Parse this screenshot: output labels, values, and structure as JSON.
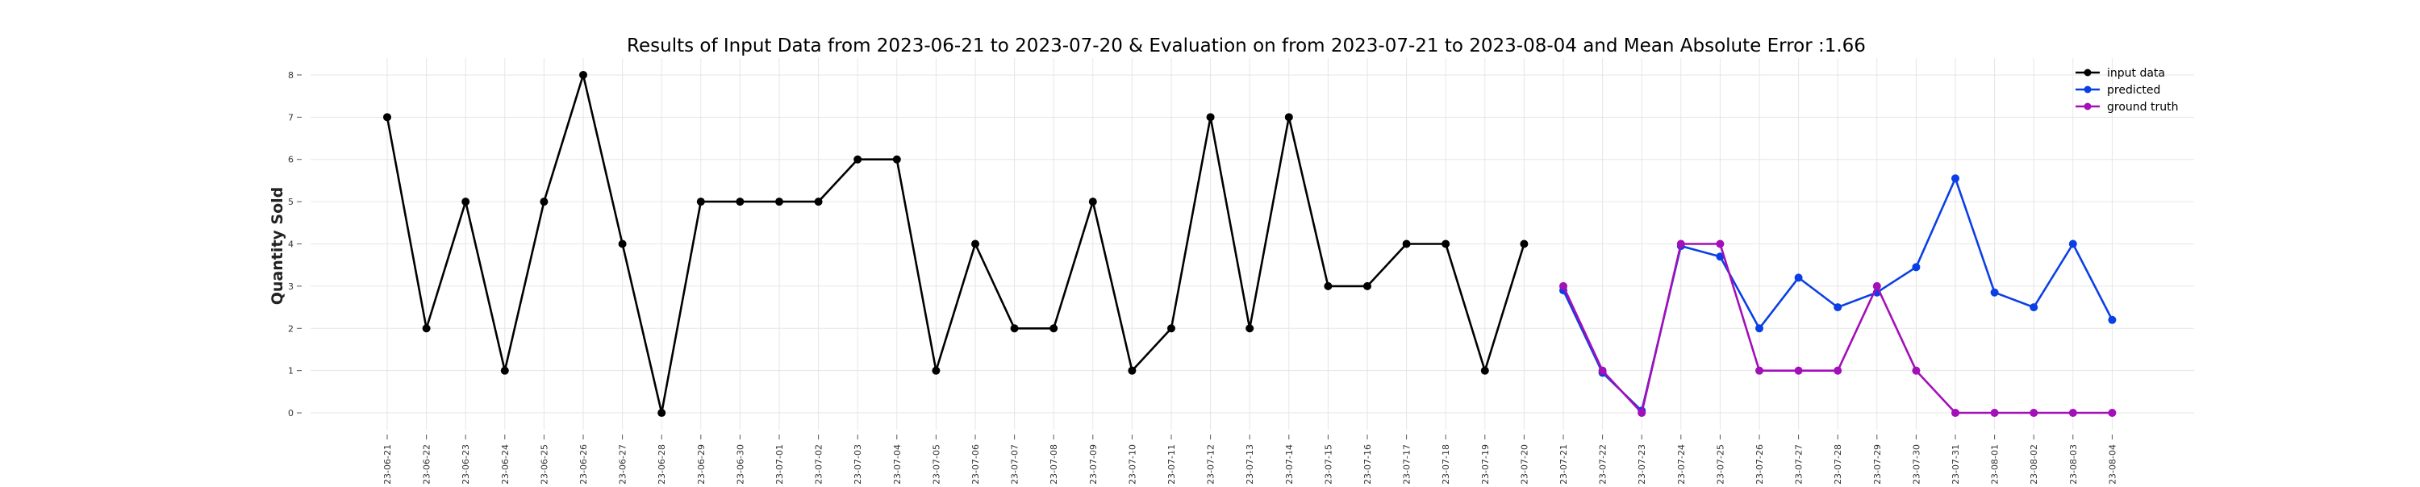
{
  "chart_data": {
    "type": "line",
    "title": "Results of Input Data from 2023-06-21 to 2023-07-20 & Evaluation on from 2023-07-21 to 2023-08-04 and Mean Absolute Error  :1.66",
    "xlabel": "",
    "ylabel": "Quantity Sold",
    "ylim": [
      -0.4,
      8.4
    ],
    "yticks": [
      0,
      1,
      2,
      3,
      4,
      5,
      6,
      7,
      8
    ],
    "grid": true,
    "legend_position": "top-right",
    "x_tick_labels": [
      "-23-06-21",
      "-23-06-22",
      "-23-06-23",
      "-23-06-24",
      "-23-06-25",
      "-23-06-26",
      "-23-06-27",
      "-23-06-28",
      "-23-06-29",
      "-23-06-30",
      "-23-07-01",
      "-23-07-02",
      "-23-07-03",
      "-23-07-04",
      "-23-07-05",
      "-23-07-06",
      "-23-07-07",
      "-23-07-08",
      "-23-07-09",
      "-23-07-10",
      "-23-07-11",
      "-23-07-12",
      "-23-07-13",
      "-23-07-14",
      "-23-07-15",
      "-23-07-16",
      "-23-07-17",
      "-23-07-18",
      "-23-07-19",
      "-23-07-20",
      "-23-07-21",
      "-23-07-22",
      "-23-07-23",
      "-23-07-24",
      "-23-07-25",
      "-23-07-26",
      "-23-07-27",
      "-23-07-28",
      "-23-07-29",
      "-23-07-30",
      "-23-07-31",
      "-23-08-01",
      "-23-08-02",
      "-23-08-03",
      "-23-08-04"
    ],
    "series": [
      {
        "name": "input data",
        "color": "#000000",
        "x": [
          "2023-06-21",
          "2023-06-22",
          "2023-06-23",
          "2023-06-24",
          "2023-06-25",
          "2023-06-26",
          "2023-06-27",
          "2023-06-28",
          "2023-06-29",
          "2023-06-30",
          "2023-07-01",
          "2023-07-02",
          "2023-07-03",
          "2023-07-04",
          "2023-07-05",
          "2023-07-06",
          "2023-07-07",
          "2023-07-08",
          "2023-07-09",
          "2023-07-10",
          "2023-07-11",
          "2023-07-12",
          "2023-07-13",
          "2023-07-14",
          "2023-07-15",
          "2023-07-16",
          "2023-07-17",
          "2023-07-18",
          "2023-07-19",
          "2023-07-20"
        ],
        "values": [
          7,
          2,
          5,
          1,
          5,
          8,
          4,
          0,
          5,
          5,
          5,
          5,
          6,
          6,
          1,
          4,
          2,
          2,
          5,
          1,
          2,
          7,
          2,
          7,
          3,
          3,
          4,
          4,
          1,
          4
        ]
      },
      {
        "name": "predicted",
        "color": "#0b3fe6",
        "x": [
          "2023-07-21",
          "2023-07-22",
          "2023-07-23",
          "2023-07-24",
          "2023-07-25",
          "2023-07-26",
          "2023-07-27",
          "2023-07-28",
          "2023-07-29",
          "2023-07-30",
          "2023-07-31",
          "2023-08-01",
          "2023-08-02",
          "2023-08-03",
          "2023-08-04"
        ],
        "values": [
          2.9,
          0.95,
          0.05,
          3.95,
          3.7,
          2.0,
          3.2,
          2.5,
          2.85,
          3.45,
          5.55,
          2.85,
          2.5,
          4.0,
          2.2
        ]
      },
      {
        "name": "ground truth",
        "color": "#a30fb8",
        "x": [
          "2023-07-21",
          "2023-07-22",
          "2023-07-23",
          "2023-07-24",
          "2023-07-25",
          "2023-07-26",
          "2023-07-27",
          "2023-07-28",
          "2023-07-29",
          "2023-07-30",
          "2023-07-31",
          "2023-08-01",
          "2023-08-02",
          "2023-08-03",
          "2023-08-04"
        ],
        "values": [
          3,
          1,
          0,
          4,
          4,
          1,
          1,
          1,
          3,
          1,
          0,
          0,
          0,
          0,
          0
        ]
      }
    ]
  }
}
